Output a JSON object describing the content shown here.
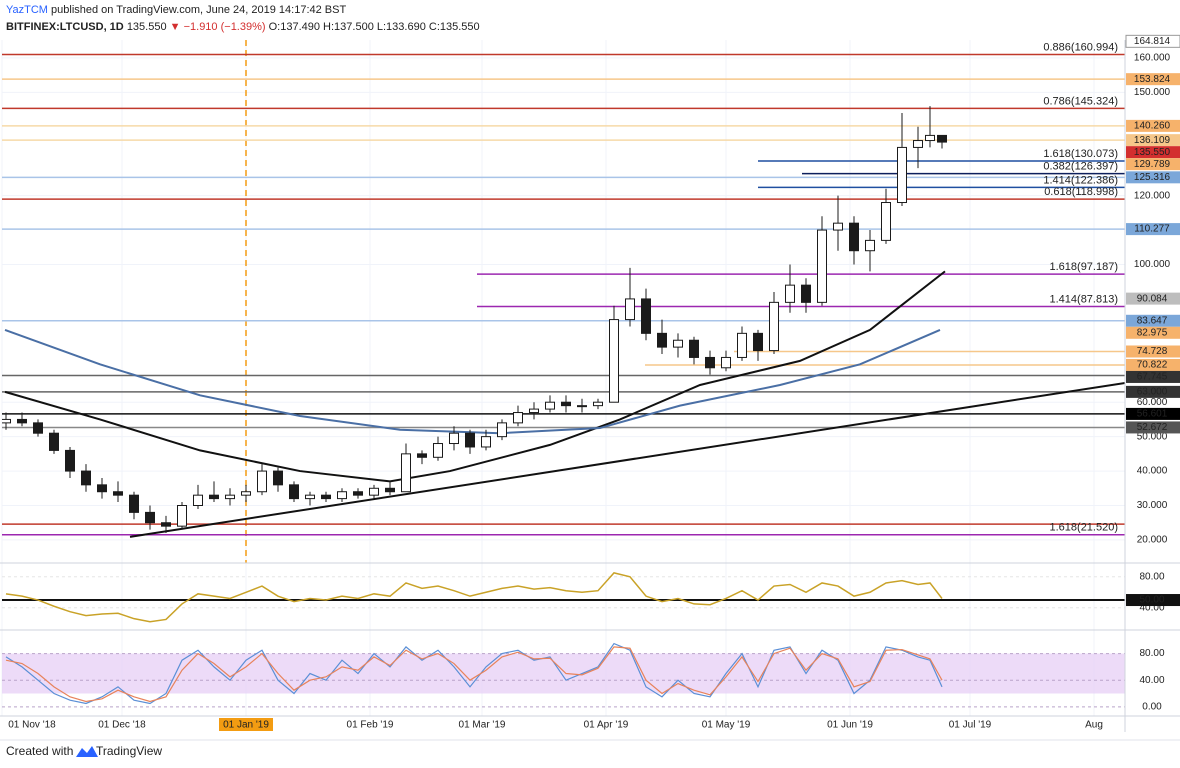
{
  "header": {
    "author": "YazTCM",
    "published": "published on TradingView.com, June 24, 2019 14:17:42 BST",
    "symbol": "BITFINEX:LTCUSD, 1D",
    "last": "135.550",
    "arrow": "▼",
    "change": "−1.910 (−1.39%)",
    "ohlc": [
      "O:137.490",
      "H:137.500",
      "L:133.690",
      "C:135.550"
    ]
  },
  "footer": {
    "created": "Created with",
    "brand": "TradingView"
  },
  "chart_data": {
    "type": "candlestick",
    "xlim": [
      0,
      280.75
    ],
    "ylim": [
      13.3,
      165.2
    ],
    "xticks": [
      {
        "value": 0,
        "label": "01 Nov '18"
      },
      {
        "value": 30,
        "label": "01 Dec '18"
      },
      {
        "value": 61,
        "label": "01 Jan '19"
      },
      {
        "value": 92,
        "label": "01 Feb '19"
      },
      {
        "value": 120,
        "label": "01 Mar '19"
      },
      {
        "value": 151,
        "label": "01 Apr '19"
      },
      {
        "value": 181,
        "label": "01 May '19"
      },
      {
        "value": 212,
        "label": "01 Jun '19"
      },
      {
        "value": 242,
        "label": "01 Jul '19"
      },
      {
        "value": 273,
        "label": "Aug"
      }
    ],
    "marker_tick": 2,
    "marker_color": "#f39c12",
    "yticks": [
      {
        "value": 20,
        "label": "20.000"
      },
      {
        "value": 30,
        "label": "30.000"
      },
      {
        "value": 40,
        "label": "40.000"
      },
      {
        "value": 50,
        "label": "50.000"
      },
      {
        "value": 60,
        "label": "60.000"
      },
      {
        "value": 100,
        "label": "100.000"
      },
      {
        "value": 120,
        "label": "120.000"
      },
      {
        "value": 150,
        "label": "150.000"
      },
      {
        "value": 160,
        "label": "160.000"
      }
    ],
    "grid": true,
    "up_color": "#ffffff",
    "down_color": "#1b1b1b",
    "wick_color": "#1b1b1b",
    "candles": {
      "x": [
        1,
        5,
        9,
        13,
        17,
        21,
        25,
        29,
        33,
        37,
        41,
        45,
        49,
        53,
        57,
        61,
        65,
        69,
        73,
        77,
        81,
        85,
        89,
        93,
        97,
        101,
        105,
        109,
        113,
        117,
        121,
        125,
        129,
        133,
        137,
        141,
        145,
        149,
        153,
        157,
        161,
        165,
        169,
        173,
        177,
        181,
        185,
        189,
        193,
        197,
        201,
        205,
        209,
        213,
        217,
        221,
        225,
        229,
        232,
        235
      ],
      "open": [
        54,
        55,
        54,
        51,
        46,
        40,
        36,
        34,
        33,
        28,
        25,
        24,
        30,
        33,
        32,
        33,
        34,
        40,
        36,
        32,
        33,
        32,
        34,
        33,
        35,
        34,
        45,
        44,
        48,
        51,
        47,
        50,
        54,
        57,
        58,
        60,
        59,
        59,
        60,
        84,
        90,
        80,
        76,
        78,
        73,
        70,
        73,
        80,
        75,
        89,
        94,
        89,
        110,
        112,
        104,
        107,
        118,
        134,
        136,
        137.49
      ],
      "high": [
        57,
        57,
        55,
        52,
        47,
        42,
        38,
        37,
        34,
        30,
        27,
        31,
        36,
        37,
        35,
        36,
        42,
        41,
        37,
        34,
        34,
        35,
        35,
        36,
        37,
        48,
        46,
        50,
        53,
        52,
        52,
        55,
        59,
        60,
        62,
        62,
        61,
        61,
        88,
        99,
        93,
        84,
        80,
        79,
        75,
        75,
        82,
        81,
        92,
        100,
        96,
        114,
        120,
        114,
        110,
        122,
        144,
        140,
        146,
        137.5
      ],
      "low": [
        52,
        53,
        50,
        45,
        38,
        34,
        32,
        31,
        26,
        23,
        22,
        23,
        29,
        31,
        30,
        31,
        33,
        34,
        31,
        30,
        31,
        31,
        32,
        32,
        33,
        34,
        42,
        43,
        46,
        45,
        46,
        49,
        53,
        55,
        57,
        57,
        57,
        58,
        60,
        82,
        78,
        74,
        73,
        71,
        68,
        69,
        72,
        72,
        74,
        86,
        86,
        88,
        104,
        100,
        98,
        106,
        117,
        128,
        134,
        133.69
      ],
      "close": [
        55,
        54,
        51,
        46,
        40,
        36,
        34,
        33,
        28,
        25,
        24,
        30,
        33,
        32,
        33,
        34,
        40,
        36,
        32,
        33,
        32,
        34,
        33,
        35,
        34,
        45,
        44,
        48,
        51,
        47,
        50,
        54,
        57,
        58,
        60,
        59,
        59,
        60,
        84,
        90,
        80,
        76,
        78,
        73,
        70,
        73,
        80,
        75,
        89,
        94,
        89,
        110,
        112,
        104,
        107,
        118,
        134,
        136,
        137.49,
        135.55
      ]
    },
    "overlays": [
      {
        "color": "#111111",
        "x": [
          0.75,
          24.5,
          49.5,
          74.5,
          97,
          112,
          137,
          154.5,
          174.5,
          199.5,
          217,
          235.75
        ],
        "values": [
          63,
          55,
          46,
          40,
          37,
          40,
          47.6,
          55,
          65,
          72,
          81,
          98
        ]
      },
      {
        "color": "#4a6fa5",
        "x": [
          0.75,
          24.5,
          49.5,
          74.5,
          99.5,
          124.5,
          149.5,
          169.5,
          194.5,
          214.5,
          234.5
        ],
        "values": [
          81,
          71,
          62,
          56,
          52,
          51,
          52.5,
          59,
          65,
          71,
          81
        ]
      },
      {
        "color": "#111111",
        "x": [
          32,
          280.75
        ],
        "values": [
          20.9,
          65.6
        ]
      }
    ],
    "levels": [
      {
        "value": 160.994,
        "color": "#c0392b",
        "x0": 0,
        "label": "0.886(160.994)"
      },
      {
        "value": 153.824,
        "color": "#f6c78a",
        "x0": 0
      },
      {
        "value": 145.324,
        "color": "#c0392b",
        "x0": 0,
        "label": "0.786(145.324)"
      },
      {
        "value": 140.26,
        "color": "#f6d9a8",
        "x0": 0
      },
      {
        "value": 136.109,
        "color": "#f6d9a8",
        "x0": 0
      },
      {
        "value": 130.073,
        "color": "#1f4fa0",
        "x0": 189,
        "label": "1.618(130.073)"
      },
      {
        "value": 126.397,
        "color": "#0d1f5c",
        "x0": 200,
        "label": "0.382(126.397)"
      },
      {
        "value": 125.316,
        "color": "#a9c4e8",
        "x0": 0
      },
      {
        "value": 122.386,
        "color": "#1f4fa0",
        "x0": 189,
        "label": "1.414(122.386)"
      },
      {
        "value": 118.998,
        "color": "#c0392b",
        "x0": 0,
        "label": "0.618(118.998)"
      },
      {
        "value": 110.277,
        "color": "#a9c4e8",
        "x0": 0
      },
      {
        "value": 97.187,
        "color": "#9c27b0",
        "x0": 118.75,
        "label": "1.618(97.187)"
      },
      {
        "value": 87.813,
        "color": "#9c27b0",
        "x0": 118.75,
        "label": "1.414(87.813)"
      },
      {
        "value": 83.647,
        "color": "#a9c4e8",
        "x0": 0
      },
      {
        "value": 74.728,
        "color": "#f6c78a",
        "x0": 183
      },
      {
        "value": 70.822,
        "color": "#f6c78a",
        "x0": 160.75
      },
      {
        "value": 67.745,
        "color": "#666666",
        "x0": 0
      },
      {
        "value": 63.0,
        "color": "#666666",
        "x0": 0
      },
      {
        "value": 56.601,
        "color": "#111111",
        "x0": 0
      },
      {
        "value": 52.672,
        "color": "#888888",
        "x0": 0
      },
      {
        "value": 24.6,
        "color": "#c0392b",
        "x0": 0
      },
      {
        "value": 21.52,
        "color": "#9c27b0",
        "x0": 0,
        "label": "1.618(21.520)"
      }
    ],
    "price_tags": [
      {
        "value": 164.814,
        "label": "164.814",
        "bg": "#ffffff",
        "fg": "#111111"
      },
      {
        "value": 153.824,
        "label": "153.824",
        "bg": "#f6b26b",
        "fg": "#ffffff"
      },
      {
        "value": 140.26,
        "label": "140.260",
        "bg": "#f6b26b",
        "fg": "#ffffff"
      },
      {
        "value": 136.109,
        "label": "136.109",
        "bg": "#f6c78a",
        "fg": "#ffffff"
      },
      {
        "value": 135.55,
        "label": "135.550",
        "bg": "#d32f2f",
        "fg": "#ffffff"
      },
      {
        "value": 129.789,
        "label": "129.789",
        "bg": "#f6b26b",
        "fg": "#ffffff"
      },
      {
        "value": 125.316,
        "label": "125.316",
        "bg": "#7ba7d9",
        "fg": "#ffffff"
      },
      {
        "value": 110.277,
        "label": "110.277",
        "bg": "#7ba7d9",
        "fg": "#ffffff"
      },
      {
        "value": 90.084,
        "label": "90.084",
        "bg": "#bdbdbd",
        "fg": "#111111"
      },
      {
        "value": 83.647,
        "label": "83.647",
        "bg": "#7ba7d9",
        "fg": "#ffffff"
      },
      {
        "value": 82.975,
        "label": "82.975",
        "bg": "#f6b26b",
        "fg": "#ffffff"
      },
      {
        "value": 74.728,
        "label": "74.728",
        "bg": "#f6b26b",
        "fg": "#ffffff"
      },
      {
        "value": 70.822,
        "label": "70.822",
        "bg": "#f6b26b",
        "fg": "#ffffff"
      },
      {
        "value": 67.745,
        "label": "67.745",
        "bg": "#333333",
        "fg": "#ffffff"
      },
      {
        "value": 63.0,
        "label": "63.000",
        "bg": "#333333",
        "fg": "#ffffff"
      },
      {
        "value": 56.601,
        "label": "56.601",
        "bg": "#000000",
        "fg": "#ffffff"
      },
      {
        "value": 52.672,
        "label": "52.672",
        "bg": "#555555",
        "fg": "#ffffff"
      }
    ],
    "rsi": {
      "color": "#c9a227",
      "ylim": [
        11.4,
        97.7
      ],
      "yticks": [
        {
          "value": 80,
          "label": "80.00"
        },
        {
          "value": 40,
          "label": "40.00"
        }
      ],
      "level": {
        "value": 50,
        "label": "50.00"
      },
      "values": [
        58,
        55,
        50,
        42,
        35,
        30,
        32,
        33,
        26,
        22,
        25,
        45,
        58,
        55,
        52,
        60,
        68,
        55,
        48,
        52,
        50,
        55,
        52,
        58,
        55,
        72,
        65,
        68,
        62,
        55,
        60,
        65,
        68,
        64,
        66,
        62,
        60,
        62,
        85,
        80,
        55,
        48,
        52,
        45,
        44,
        52,
        62,
        50,
        68,
        70,
        60,
        72,
        68,
        55,
        60,
        72,
        75,
        70,
        72,
        52
      ]
    },
    "stoch": {
      "ylim": [
        -13.8,
        115.4
      ],
      "band": [
        20,
        80
      ],
      "band_color": "#e6ccf5",
      "yticks": [
        {
          "value": 80,
          "label": "80.00"
        },
        {
          "value": 40,
          "label": "40.00"
        },
        {
          "value": 0,
          "label": "0.00"
        }
      ],
      "series": [
        {
          "color": "#5b8fd6",
          "values": [
            75,
            60,
            40,
            20,
            10,
            5,
            15,
            30,
            10,
            5,
            20,
            70,
            85,
            60,
            40,
            70,
            85,
            40,
            20,
            50,
            40,
            70,
            50,
            80,
            60,
            90,
            70,
            85,
            60,
            30,
            60,
            80,
            85,
            70,
            75,
            40,
            50,
            60,
            95,
            85,
            30,
            15,
            40,
            20,
            15,
            50,
            80,
            30,
            85,
            90,
            50,
            85,
            70,
            20,
            40,
            90,
            85,
            75,
            70,
            30
          ]
        },
        {
          "color": "#e8835b",
          "values": [
            70,
            65,
            50,
            30,
            15,
            8,
            12,
            25,
            15,
            8,
            15,
            55,
            80,
            65,
            45,
            60,
            80,
            50,
            25,
            40,
            45,
            60,
            55,
            75,
            62,
            85,
            72,
            80,
            65,
            40,
            55,
            75,
            82,
            72,
            73,
            50,
            48,
            58,
            90,
            88,
            40,
            20,
            35,
            25,
            18,
            45,
            75,
            38,
            80,
            88,
            55,
            80,
            72,
            30,
            38,
            85,
            86,
            78,
            72,
            40
          ]
        }
      ]
    }
  }
}
